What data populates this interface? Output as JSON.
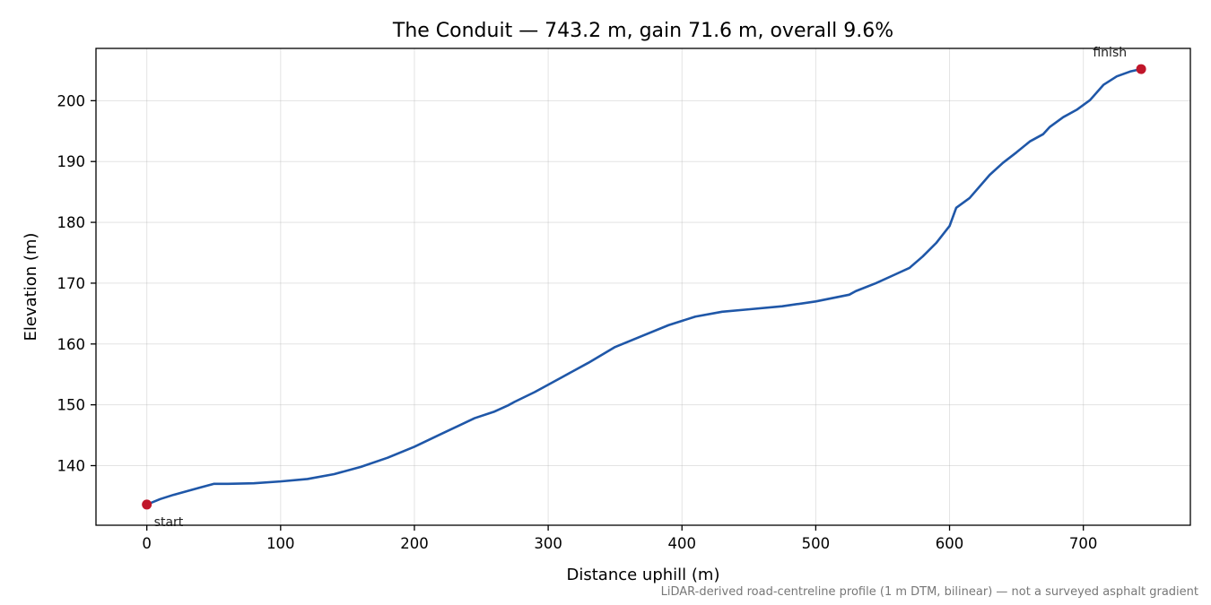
{
  "chart_data": {
    "type": "line",
    "title": "The Conduit — 743.2 m, gain 71.6 m, overall 9.6%",
    "xlabel": "Distance uphill (m)",
    "ylabel": "Elevation (m)",
    "xlim": [
      -38,
      780
    ],
    "ylim": [
      130.2,
      208.6
    ],
    "xticks": [
      0,
      100,
      200,
      300,
      400,
      500,
      600,
      700
    ],
    "yticks": [
      140,
      150,
      160,
      170,
      180,
      190,
      200
    ],
    "grid": true,
    "series": [
      {
        "color": "#1f57a8",
        "x": [
          0,
          10,
          20,
          30,
          40,
          50,
          60,
          80,
          100,
          120,
          140,
          160,
          180,
          200,
          220,
          245,
          260,
          270,
          275,
          290,
          310,
          330,
          350,
          370,
          390,
          410,
          430,
          450,
          475,
          500,
          525,
          530,
          545,
          560,
          570,
          580,
          590,
          600,
          605,
          615,
          630,
          640,
          650,
          660,
          670,
          675,
          685,
          695,
          705,
          715,
          725,
          735,
          743.2
        ],
        "y": [
          133.6,
          134.5,
          135.2,
          135.8,
          136.4,
          137.0,
          137.0,
          137.1,
          137.4,
          137.8,
          138.6,
          139.8,
          141.3,
          143.1,
          145.2,
          147.8,
          148.9,
          149.9,
          150.5,
          152.1,
          154.5,
          156.9,
          159.5,
          161.3,
          163.1,
          164.5,
          165.3,
          165.7,
          166.2,
          167.0,
          168.1,
          168.7,
          170.0,
          171.5,
          172.5,
          174.4,
          176.6,
          179.4,
          182.4,
          184.0,
          187.8,
          189.8,
          191.5,
          193.3,
          194.5,
          195.7,
          197.3,
          198.5,
          200.1,
          202.6,
          204.0,
          204.8,
          205.2
        ]
      }
    ],
    "points": [
      {
        "label": "start",
        "x": 0,
        "y": 133.6,
        "color": "#c0162a"
      },
      {
        "label": "finish",
        "x": 743.2,
        "y": 205.2,
        "color": "#c0162a"
      }
    ],
    "footnote": "LiDAR-derived road-centreline profile (1 m DTM, bilinear) — not a surveyed asphalt gradient"
  }
}
